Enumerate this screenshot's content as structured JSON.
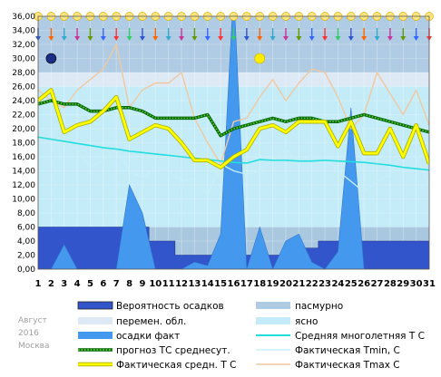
{
  "chart_data": {
    "type": "line",
    "title": "",
    "caption": {
      "month": "Август",
      "year": "2016",
      "city": "Москва"
    },
    "x": [
      1,
      2,
      3,
      4,
      5,
      6,
      7,
      8,
      9,
      10,
      11,
      12,
      13,
      14,
      15,
      16,
      17,
      18,
      19,
      20,
      21,
      22,
      23,
      24,
      25,
      26,
      27,
      28,
      29,
      30,
      31
    ],
    "x_tick_labels": [
      "1",
      "2",
      "3",
      "4",
      "5",
      "6",
      "7",
      "8",
      "9",
      "10",
      "11",
      "12",
      "13",
      "14",
      "15",
      "16",
      "17",
      "18",
      "19",
      "20",
      "21",
      "22",
      "23",
      "24",
      "25",
      "26",
      "27",
      "28",
      "29",
      "30",
      "31"
    ],
    "y_tick_labels": [
      "0,00",
      "2,00",
      "4,00",
      "6,00",
      "8,00",
      "10,00",
      "12,00",
      "14,00",
      "16,00",
      "18,00",
      "20,00",
      "22,00",
      "24,00",
      "26,00",
      "28,00",
      "30,00",
      "32,00",
      "34,00",
      "36,00"
    ],
    "ylim": [
      0,
      36
    ],
    "grid": true,
    "colors": {
      "precip_prob": "#3355cc",
      "precip_fact": "#4499ee",
      "forecast": "#006600",
      "forecast_dots": "#66cc33",
      "normal": "#22dddd",
      "fact_mean": "#ffff00",
      "fact_mean_edge": "#aaaa00",
      "fact_min": "#c8eef8",
      "fact_max": "#f0c8a0",
      "cloudy": "#b0cce4",
      "partly": "#dde9f5",
      "clear": "#c4ecf8"
    },
    "series": [
      {
        "name": "Вероятность осадков",
        "kind": "step-area",
        "values": [
          6,
          6,
          6,
          6,
          6,
          6,
          6,
          6,
          6,
          4,
          4,
          2,
          2,
          2,
          2,
          2,
          2,
          2,
          2,
          2,
          2,
          3,
          4,
          4,
          4,
          4,
          4,
          4,
          4,
          4,
          4
        ]
      },
      {
        "name": "осадки факт",
        "kind": "area",
        "values": [
          0,
          0,
          3.5,
          0,
          0,
          0,
          0,
          12,
          8,
          0,
          0,
          0,
          1,
          0.5,
          5,
          40,
          0,
          6,
          0,
          4,
          5,
          1,
          0,
          2.5,
          23,
          0,
          0,
          0,
          0,
          0,
          0
        ]
      },
      {
        "name": "Фактическая Tmax C",
        "values": [
          25.5,
          24,
          23,
          25.5,
          27,
          28.5,
          32,
          23,
          25.5,
          26.5,
          26.5,
          28,
          21.5,
          18,
          15,
          21,
          21.5,
          24.5,
          27,
          24,
          26.5,
          28.5,
          28,
          24.5,
          20,
          22,
          28,
          25,
          22,
          25.5,
          20.5
        ]
      },
      {
        "name": "Фактическая Tmin, C",
        "values": [
          19,
          18.5,
          18.5,
          17,
          14.5,
          15.5,
          17,
          14,
          13,
          14.5,
          14,
          12.5,
          13,
          10.5,
          15,
          14,
          13.5,
          14,
          15.5,
          17,
          15.5,
          16,
          16,
          14,
          12.5,
          11,
          12.5,
          13.5,
          17,
          16,
          12
        ]
      },
      {
        "name": "Средняя многолетняя Т С",
        "values": [
          18.8,
          18.5,
          18.2,
          17.9,
          17.6,
          17.3,
          17.1,
          16.8,
          16.6,
          16.4,
          16.2,
          16,
          15.8,
          15.6,
          15.4,
          15.2,
          15.1,
          15.6,
          15.5,
          15.5,
          15.4,
          15.4,
          15.5,
          15.4,
          15.3,
          15.2,
          15,
          14.8,
          14.5,
          14.3,
          14.1
        ]
      },
      {
        "name": "прогноз ТС среднесут.",
        "values": [
          23.5,
          24,
          23.5,
          23.5,
          22.5,
          22.5,
          23,
          23,
          22.5,
          21.5,
          21.5,
          21.5,
          21.5,
          22,
          19,
          20,
          20.5,
          21,
          21.5,
          21,
          21.5,
          21.5,
          21,
          21,
          21.5,
          22,
          21.5,
          21,
          20.5,
          20,
          19.5
        ]
      },
      {
        "name": "Фактическая средн. Т С",
        "values": [
          24,
          25.5,
          19.5,
          20.5,
          21,
          22.5,
          24.5,
          18.5,
          19.5,
          20.5,
          20,
          18,
          15.5,
          15.5,
          14.5,
          16,
          17,
          20,
          20.5,
          19.5,
          21,
          21,
          21,
          17.5,
          21,
          16.5,
          16.5,
          20,
          16,
          20.5,
          15
        ]
      }
    ],
    "sky": [
      {
        "name": "пасмурно",
        "from": 28,
        "to": 36
      },
      {
        "name": "перемен. обл.",
        "from": 26,
        "to": 28
      },
      {
        "name": "ясно",
        "from": 6,
        "to": 26
      }
    ],
    "sky_legend": [
      "пасмурно",
      "перемен. обл.",
      "ясно"
    ]
  },
  "legend": {
    "left": [
      "Вероятность осадков",
      "перемен. обл.",
      "осадки факт",
      "прогноз ТС среднесут.",
      "Фактическая средн. Т С"
    ],
    "right": [
      "пасмурно",
      "ясно",
      "Средняя многолетняя Т С",
      "Фактическая Tmin, C",
      "Фактическая Tmax C"
    ]
  }
}
